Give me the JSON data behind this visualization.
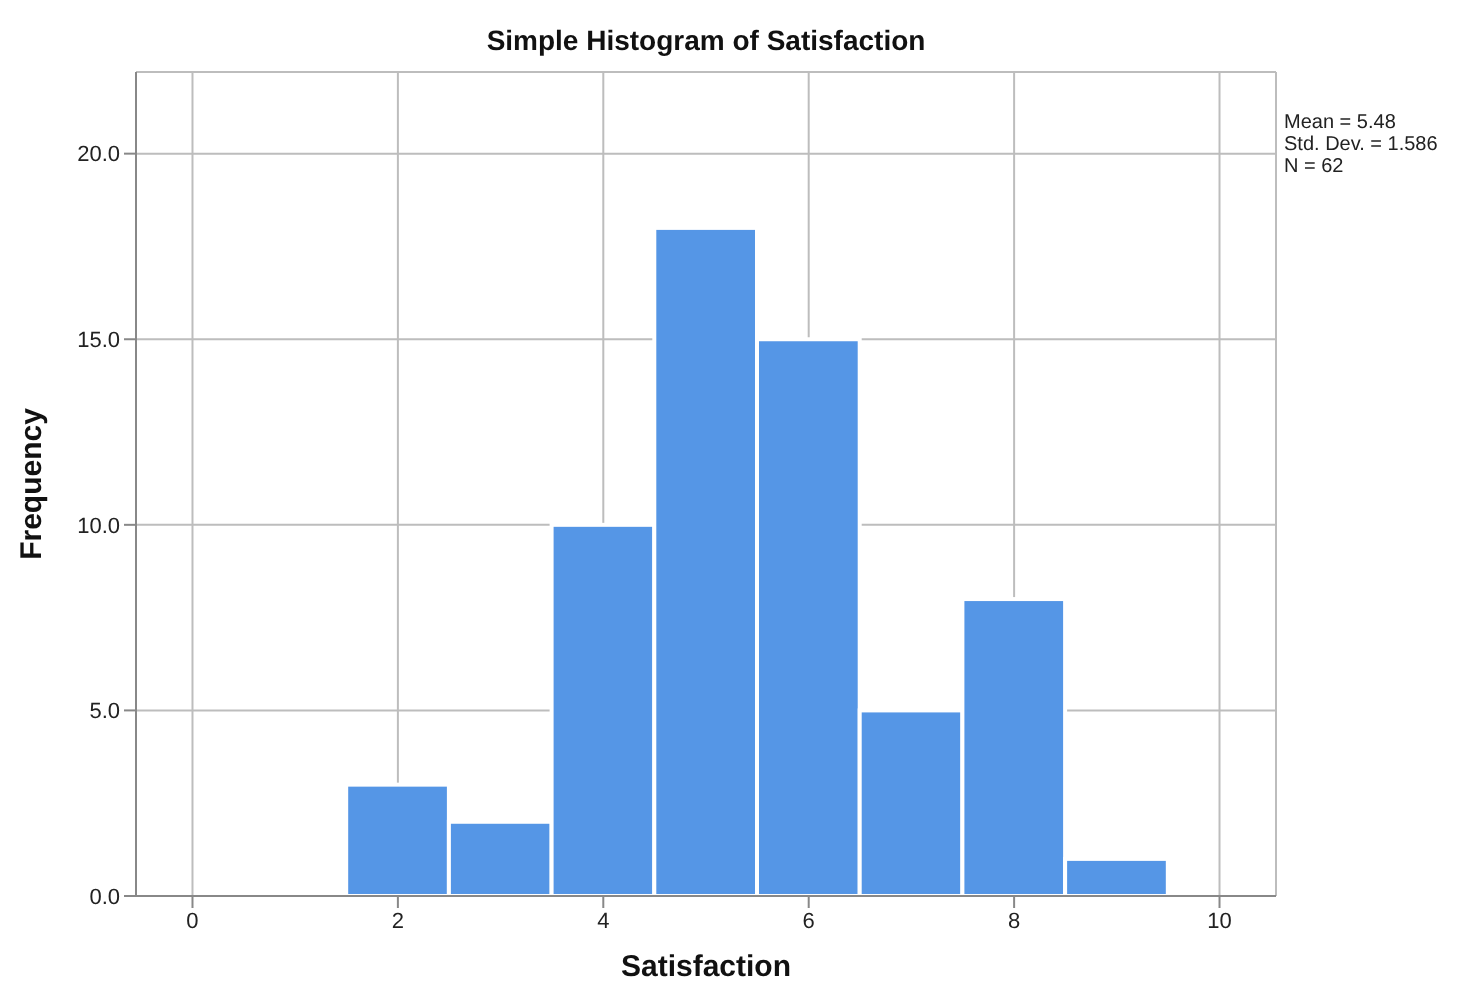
{
  "chart_data": {
    "type": "histogram",
    "title": "Simple Histogram of Satisfaction",
    "xlabel": "Satisfaction",
    "ylabel": "Frequency",
    "bins": [
      1.5,
      2.5,
      3.5,
      4.5,
      5.5,
      6.5,
      7.5,
      8.5,
      9.5
    ],
    "values": [
      3,
      2,
      10,
      18,
      15,
      5,
      8,
      1
    ],
    "color": "#5596e6",
    "xlim": [
      -0.55,
      10.55
    ],
    "xticks": [
      0,
      2,
      4,
      6,
      8,
      10
    ],
    "ylim": [
      0,
      22.2
    ],
    "yticks": [
      {
        "value": 0,
        "label": "0.0"
      },
      {
        "value": 5,
        "label": "5.0"
      },
      {
        "value": 10,
        "label": "10.0"
      },
      {
        "value": 15,
        "label": "15.0"
      },
      {
        "value": 20,
        "label": "20.0"
      }
    ],
    "grid": true,
    "annotations": [
      "Mean = 5.48",
      "Std. Dev. = 1.586",
      "N = 62"
    ]
  }
}
